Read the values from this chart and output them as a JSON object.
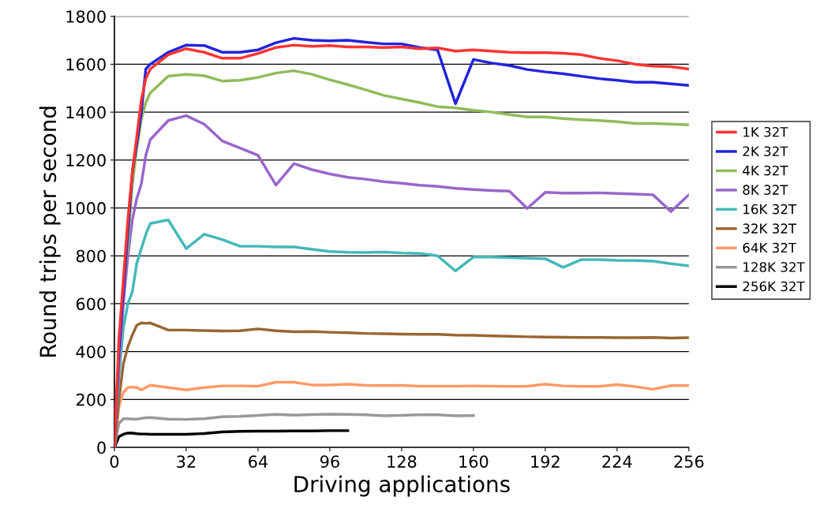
{
  "chart_data": {
    "type": "line",
    "xlabel": "Driving applications",
    "ylabel": "Round trips per second",
    "x": [
      0,
      2,
      4,
      6,
      8,
      10,
      12,
      14,
      16,
      24,
      32,
      40,
      48,
      56,
      64,
      72,
      80,
      88,
      96,
      104,
      112,
      120,
      128,
      136,
      144,
      152,
      160,
      168,
      176,
      184,
      192,
      200,
      208,
      216,
      224,
      232,
      240,
      248,
      256
    ],
    "xlim": [
      0,
      256
    ],
    "xticks": [
      0,
      32,
      64,
      96,
      128,
      160,
      192,
      224,
      256
    ],
    "ylim": [
      0,
      1800
    ],
    "yticks": [
      0,
      200,
      400,
      600,
      800,
      1000,
      1200,
      1400,
      1600,
      1800
    ],
    "grid": "y",
    "legend": "right",
    "marker": "none",
    "line_style": "solid",
    "series": [
      {
        "name": "1K 32T",
        "color": "#ff3333",
        "values": [
          0,
          450,
          700,
          950,
          1150,
          1300,
          1450,
          1540,
          1580,
          1640,
          1665,
          1650,
          1625,
          1625,
          1645,
          1670,
          1680,
          1675,
          1678,
          1672,
          1672,
          1670,
          1672,
          1665,
          1668,
          1655,
          1660,
          1655,
          1650,
          1648,
          1648,
          1646,
          1640,
          1625,
          1615,
          1600,
          1592,
          1590,
          1580
        ]
      },
      {
        "name": "2K 32T",
        "color": "#2222dd",
        "values": [
          0,
          400,
          650,
          900,
          1150,
          1270,
          1400,
          1580,
          1600,
          1650,
          1680,
          1678,
          1650,
          1650,
          1660,
          1690,
          1708,
          1700,
          1698,
          1700,
          1692,
          1685,
          1685,
          1670,
          1660,
          1435,
          1620,
          1605,
          1595,
          1578,
          1568,
          1560,
          1550,
          1540,
          1533,
          1525,
          1525,
          1518,
          1512
        ]
      },
      {
        "name": "4K 32T",
        "color": "#8fbc5a",
        "values": [
          0,
          400,
          650,
          850,
          1100,
          1250,
          1370,
          1440,
          1480,
          1550,
          1558,
          1552,
          1530,
          1533,
          1545,
          1563,
          1573,
          1558,
          1535,
          1515,
          1493,
          1470,
          1455,
          1440,
          1423,
          1418,
          1408,
          1400,
          1390,
          1380,
          1380,
          1373,
          1368,
          1365,
          1360,
          1353,
          1353,
          1350,
          1347
        ]
      },
      {
        "name": "8K 32T",
        "color": "#9966cc",
        "values": [
          0,
          350,
          600,
          800,
          950,
          1040,
          1100,
          1220,
          1285,
          1365,
          1385,
          1350,
          1280,
          1250,
          1220,
          1095,
          1185,
          1160,
          1142,
          1128,
          1120,
          1110,
          1103,
          1095,
          1090,
          1082,
          1077,
          1073,
          1070,
          998,
          1065,
          1062,
          1062,
          1063,
          1060,
          1058,
          1055,
          985,
          1055
        ]
      },
      {
        "name": "16K 32T",
        "color": "#44b8b8",
        "values": [
          0,
          300,
          500,
          600,
          650,
          770,
          830,
          890,
          935,
          950,
          830,
          890,
          868,
          840,
          840,
          837,
          837,
          827,
          818,
          815,
          814,
          816,
          812,
          810,
          800,
          737,
          795,
          795,
          793,
          790,
          788,
          752,
          784,
          784,
          781,
          780,
          778,
          767,
          758
        ]
      },
      {
        "name": "32K 32T",
        "color": "#996633",
        "values": [
          0,
          200,
          350,
          420,
          470,
          510,
          520,
          518,
          520,
          490,
          490,
          488,
          486,
          487,
          495,
          487,
          483,
          484,
          481,
          479,
          476,
          475,
          473,
          472,
          472,
          469,
          468,
          466,
          464,
          462,
          461,
          460,
          459,
          459,
          458,
          458,
          459,
          457,
          458
        ]
      },
      {
        "name": "64K 32T",
        "color": "#ff9966",
        "values": [
          0,
          170,
          230,
          250,
          252,
          250,
          240,
          250,
          260,
          250,
          240,
          250,
          257,
          257,
          256,
          272,
          272,
          261,
          261,
          264,
          259,
          258,
          259,
          256,
          256,
          256,
          257,
          256,
          255,
          256,
          264,
          257,
          255,
          255,
          262,
          254,
          243,
          258,
          258
        ]
      },
      {
        "name": "128K 32T",
        "color": "#999999",
        "values": [
          0,
          100,
          120,
          120,
          118,
          118,
          121,
          124,
          125,
          118,
          117,
          120,
          128,
          130,
          134,
          138,
          135,
          137,
          139,
          138,
          136,
          132,
          134,
          136,
          136,
          132,
          133,
          null,
          null,
          null,
          null,
          null,
          null,
          null,
          null,
          null,
          null,
          null,
          null
        ]
      },
      {
        "name": "256K 32T",
        "color": "#000000",
        "values": [
          0,
          45,
          55,
          60,
          60,
          57,
          56,
          56,
          55,
          55,
          55,
          58,
          65,
          67,
          68,
          68,
          69,
          69,
          70,
          70,
          null,
          null,
          null,
          null,
          null,
          null,
          null,
          null,
          null,
          null,
          null,
          null,
          null,
          null,
          null,
          null,
          null,
          null,
          null
        ]
      }
    ]
  }
}
